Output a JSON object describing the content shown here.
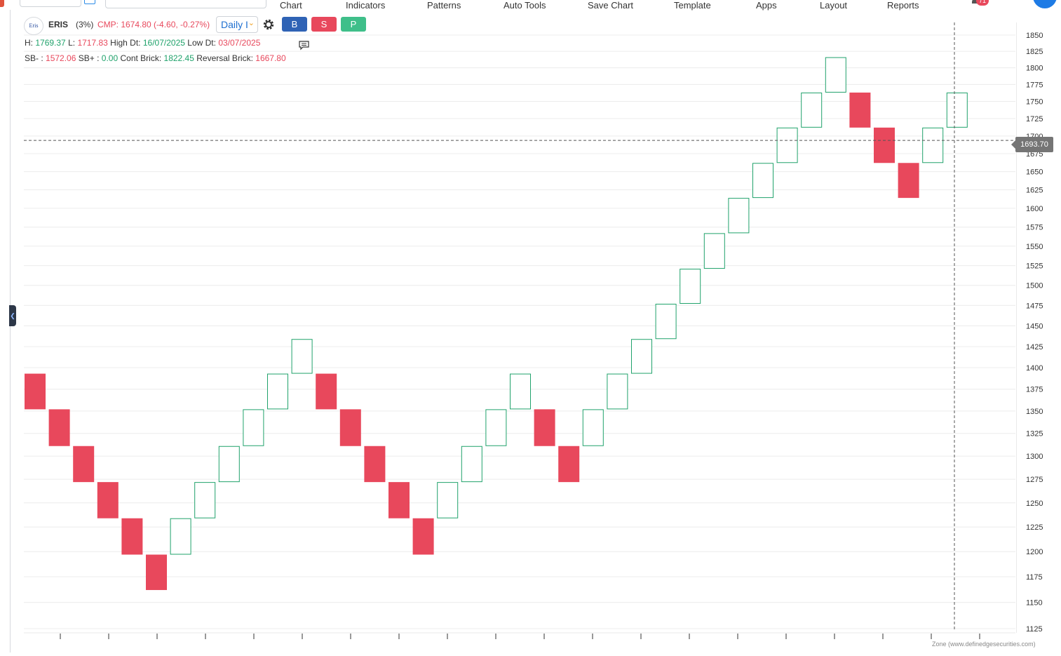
{
  "menu": [
    "Chart",
    "Indicators",
    "Patterns",
    "Auto Tools",
    "Save Chart",
    "Template",
    "Apps",
    "Layout",
    "Reports"
  ],
  "notifications": {
    "count": "71"
  },
  "symbol": {
    "logo_text": "Eris",
    "name": "ERIS",
    "brick_pct": "(3%)",
    "cmp": "CMP: 1674.80 (-4.60, -0.27%)"
  },
  "timeframe": {
    "label": "Daily I"
  },
  "trade_buttons": {
    "buy": "B",
    "sell": "S",
    "p": "P"
  },
  "stats1": {
    "h_label": "H:",
    "h_val": "1769.37",
    "l_label": "L:",
    "l_val": "1717.83",
    "hd_label": "High Dt:",
    "hd_val": "16/07/2025",
    "ld_label": "Low Dt:",
    "ld_val": "03/07/2025"
  },
  "stats2": {
    "sbm_label": "SB- :",
    "sbm_val": "1572.06",
    "sbp_label": "SB+ :",
    "sbp_val": "0.00",
    "cb_label": "Cont Brick:",
    "cb_val": "1822.45",
    "rb_label": "Reversal Brick:",
    "rb_val": "1667.80"
  },
  "crosshair": {
    "price": "1693.70"
  },
  "watermark": "Zone (www.definedgesecurities.com)",
  "colors": {
    "up": "#20a26b",
    "down": "#e8485c",
    "grid": "#ececec"
  },
  "chart_data": {
    "type": "renko",
    "brick_percent": 3,
    "y_axis_ticks": [
      1850,
      1825,
      1800,
      1775,
      1750,
      1725,
      1700,
      1675,
      1650,
      1625,
      1600,
      1575,
      1550,
      1525,
      1500,
      1475,
      1450,
      1425,
      1400,
      1375,
      1350,
      1325,
      1300,
      1275,
      1250,
      1225,
      1200,
      1175,
      1150,
      1125
    ],
    "ylim": [
      1120,
      1860
    ],
    "bricks": [
      {
        "dir": "down",
        "open": 1393,
        "close": 1352
      },
      {
        "dir": "down",
        "open": 1352,
        "close": 1311
      },
      {
        "dir": "down",
        "open": 1311,
        "close": 1272
      },
      {
        "dir": "down",
        "open": 1272,
        "close": 1234
      },
      {
        "dir": "down",
        "open": 1234,
        "close": 1197
      },
      {
        "dir": "down",
        "open": 1197,
        "close": 1162
      },
      {
        "dir": "up",
        "open": 1197,
        "close": 1234
      },
      {
        "dir": "up",
        "open": 1234,
        "close": 1272
      },
      {
        "dir": "up",
        "open": 1272,
        "close": 1311
      },
      {
        "dir": "up",
        "open": 1311,
        "close": 1352
      },
      {
        "dir": "up",
        "open": 1352,
        "close": 1393
      },
      {
        "dir": "up",
        "open": 1393,
        "close": 1434
      },
      {
        "dir": "down",
        "open": 1393,
        "close": 1352
      },
      {
        "dir": "down",
        "open": 1352,
        "close": 1311
      },
      {
        "dir": "down",
        "open": 1311,
        "close": 1272
      },
      {
        "dir": "down",
        "open": 1272,
        "close": 1234
      },
      {
        "dir": "down",
        "open": 1234,
        "close": 1197
      },
      {
        "dir": "up",
        "open": 1234,
        "close": 1272
      },
      {
        "dir": "up",
        "open": 1272,
        "close": 1311
      },
      {
        "dir": "up",
        "open": 1311,
        "close": 1352
      },
      {
        "dir": "up",
        "open": 1352,
        "close": 1393
      },
      {
        "dir": "down",
        "open": 1352,
        "close": 1311
      },
      {
        "dir": "down",
        "open": 1311,
        "close": 1272
      },
      {
        "dir": "up",
        "open": 1311,
        "close": 1352
      },
      {
        "dir": "up",
        "open": 1352,
        "close": 1393
      },
      {
        "dir": "up",
        "open": 1393,
        "close": 1434
      },
      {
        "dir": "up",
        "open": 1434,
        "close": 1477
      },
      {
        "dir": "up",
        "open": 1477,
        "close": 1521
      },
      {
        "dir": "up",
        "open": 1521,
        "close": 1567
      },
      {
        "dir": "up",
        "open": 1567,
        "close": 1614
      },
      {
        "dir": "up",
        "open": 1614,
        "close": 1662
      },
      {
        "dir": "up",
        "open": 1662,
        "close": 1712
      },
      {
        "dir": "up",
        "open": 1712,
        "close": 1763
      },
      {
        "dir": "up",
        "open": 1763,
        "close": 1816
      },
      {
        "dir": "down",
        "open": 1763,
        "close": 1712
      },
      {
        "dir": "down",
        "open": 1712,
        "close": 1662
      },
      {
        "dir": "down",
        "open": 1662,
        "close": 1614
      },
      {
        "dir": "up",
        "open": 1662,
        "close": 1712
      },
      {
        "dir": "up",
        "open": 1712,
        "close": 1763
      }
    ],
    "crosshair_price": 1693.7
  }
}
